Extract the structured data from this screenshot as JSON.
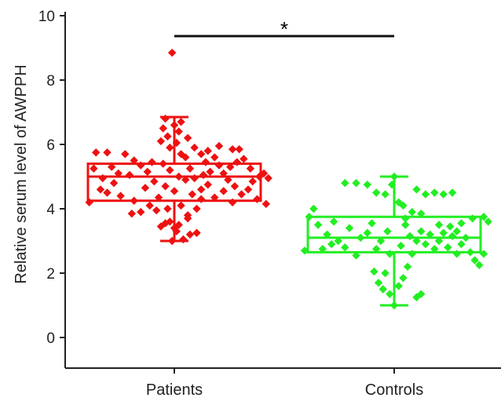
{
  "chart_data": {
    "type": "scatter",
    "subtype": "box-with-points",
    "title": "",
    "xlabel": "",
    "ylabel": "Relative serum level of AWPPH",
    "ylim": [
      -1,
      10
    ],
    "yticks": [
      "0",
      "2",
      "4",
      "6",
      "8",
      "10"
    ],
    "grid": false,
    "categories": [
      "Patients",
      "Controls"
    ],
    "series": [
      {
        "color": "#ee1111",
        "box": {
          "min": 3.0,
          "q1": 4.25,
          "median": 5.0,
          "q3": 5.4,
          "max": 6.85
        },
        "points": [
          [
            -0.35,
            5.75
          ],
          [
            -0.3,
            5.75
          ],
          [
            -0.22,
            5.7
          ],
          [
            -0.18,
            5.5
          ],
          [
            -0.28,
            5.3
          ],
          [
            -0.36,
            5.25
          ],
          [
            -0.25,
            5.1
          ],
          [
            -0.2,
            5.05
          ],
          [
            -0.15,
            5.35
          ],
          [
            -0.1,
            5.45
          ],
          [
            -0.32,
            4.95
          ],
          [
            -0.27,
            4.8
          ],
          [
            -0.33,
            4.6
          ],
          [
            -0.38,
            4.2
          ],
          [
            -0.3,
            4.5
          ],
          [
            -0.24,
            4.4
          ],
          [
            -0.18,
            4.25
          ],
          [
            -0.13,
            4.65
          ],
          [
            -0.09,
            4.85
          ],
          [
            -0.12,
            5.15
          ],
          [
            -0.05,
            5.4
          ],
          [
            -0.02,
            5.2
          ],
          [
            0.02,
            5.0
          ],
          [
            0.05,
            4.9
          ],
          [
            -0.04,
            4.7
          ],
          [
            0.0,
            4.55
          ],
          [
            -0.07,
            4.35
          ],
          [
            -0.11,
            4.1
          ],
          [
            -0.15,
            3.9
          ],
          [
            -0.19,
            3.85
          ],
          [
            -0.08,
            3.95
          ],
          [
            -0.03,
            4.0
          ],
          [
            0.03,
            4.1
          ],
          [
            0.06,
            3.8
          ],
          [
            -0.02,
            3.6
          ],
          [
            0.02,
            3.5
          ],
          [
            -0.06,
            3.45
          ],
          [
            0.01,
            3.3
          ],
          [
            -0.01,
            3.0
          ],
          [
            0.04,
            3.05
          ],
          [
            0.07,
            3.2
          ],
          [
            0.1,
            3.25
          ],
          [
            0.0,
            3.4
          ],
          [
            -0.04,
            3.55
          ],
          [
            0.06,
            3.7
          ],
          [
            0.1,
            4.0
          ],
          [
            0.12,
            4.3
          ],
          [
            0.08,
            4.45
          ],
          [
            0.12,
            4.6
          ],
          [
            0.15,
            4.75
          ],
          [
            0.09,
            4.95
          ],
          [
            0.13,
            5.05
          ],
          [
            0.07,
            5.25
          ],
          [
            0.16,
            5.15
          ],
          [
            0.14,
            5.45
          ],
          [
            0.18,
            5.6
          ],
          [
            0.2,
            5.35
          ],
          [
            0.22,
            5.1
          ],
          [
            0.25,
            5.3
          ],
          [
            0.28,
            5.45
          ],
          [
            0.24,
            4.9
          ],
          [
            0.27,
            4.7
          ],
          [
            0.22,
            4.55
          ],
          [
            0.18,
            4.35
          ],
          [
            0.26,
            4.2
          ],
          [
            0.3,
            4.45
          ],
          [
            0.33,
            4.6
          ],
          [
            0.35,
            4.85
          ],
          [
            0.38,
            5.0
          ],
          [
            0.4,
            5.1
          ],
          [
            0.34,
            5.25
          ],
          [
            0.31,
            5.55
          ],
          [
            0.29,
            5.85
          ],
          [
            0.26,
            5.85
          ],
          [
            0.2,
            5.95
          ],
          [
            0.15,
            5.8
          ],
          [
            0.05,
            5.6
          ],
          [
            0.03,
            5.7
          ],
          [
            -0.02,
            5.9
          ],
          [
            0.01,
            6.05
          ],
          [
            -0.03,
            6.25
          ],
          [
            0.02,
            6.4
          ],
          [
            -0.05,
            6.5
          ],
          [
            0.0,
            6.6
          ],
          [
            0.03,
            6.7
          ],
          [
            -0.04,
            6.8
          ],
          [
            -0.06,
            6.1
          ],
          [
            0.06,
            6.2
          ],
          [
            0.09,
            5.9
          ],
          [
            0.12,
            5.7
          ],
          [
            0.37,
            4.3
          ],
          [
            0.42,
            4.95
          ],
          [
            0.41,
            4.15
          ],
          [
            -0.01,
            8.85
          ]
        ]
      },
      {
        "color": "#22ee22",
        "box": {
          "min": 1.0,
          "q1": 2.65,
          "median": 3.1,
          "q3": 3.75,
          "max": 5.0
        },
        "points": [
          [
            -0.4,
            2.7
          ],
          [
            -0.38,
            3.75
          ],
          [
            -0.36,
            4.0
          ],
          [
            -0.34,
            3.5
          ],
          [
            -0.3,
            3.2
          ],
          [
            -0.27,
            3.6
          ],
          [
            -0.25,
            3.0
          ],
          [
            -0.22,
            2.8
          ],
          [
            -0.2,
            3.4
          ],
          [
            -0.17,
            2.55
          ],
          [
            -0.15,
            3.1
          ],
          [
            -0.12,
            3.25
          ],
          [
            -0.1,
            3.55
          ],
          [
            -0.08,
            2.75
          ],
          [
            -0.06,
            3.0
          ],
          [
            -0.03,
            3.3
          ],
          [
            -0.02,
            2.6
          ],
          [
            -0.22,
            4.8
          ],
          [
            -0.17,
            4.8
          ],
          [
            -0.12,
            4.75
          ],
          [
            -0.08,
            4.5
          ],
          [
            -0.04,
            4.45
          ],
          [
            -0.01,
            4.75
          ],
          [
            0.0,
            5.0
          ],
          [
            0.02,
            4.2
          ],
          [
            0.04,
            4.1
          ],
          [
            0.05,
            3.5
          ],
          [
            0.07,
            3.15
          ],
          [
            0.03,
            2.85
          ],
          [
            0.08,
            2.6
          ],
          [
            -0.09,
            2.05
          ],
          [
            -0.07,
            1.7
          ],
          [
            -0.05,
            1.5
          ],
          [
            -0.02,
            1.35
          ],
          [
            0.0,
            1.0
          ],
          [
            0.02,
            1.6
          ],
          [
            0.04,
            1.85
          ],
          [
            0.06,
            2.2
          ],
          [
            0.1,
            1.25
          ],
          [
            0.12,
            1.35
          ],
          [
            -0.04,
            2.0
          ],
          [
            0.1,
            3.0
          ],
          [
            0.12,
            3.3
          ],
          [
            0.14,
            2.9
          ],
          [
            0.16,
            3.2
          ],
          [
            0.18,
            2.75
          ],
          [
            0.2,
            3.0
          ],
          [
            0.22,
            3.25
          ],
          [
            0.24,
            2.8
          ],
          [
            0.26,
            3.15
          ],
          [
            0.28,
            3.3
          ],
          [
            0.3,
            2.9
          ],
          [
            0.32,
            3.1
          ],
          [
            0.34,
            2.65
          ],
          [
            0.36,
            2.4
          ],
          [
            0.38,
            2.25
          ],
          [
            0.4,
            2.6
          ],
          [
            0.42,
            3.6
          ],
          [
            0.4,
            3.75
          ],
          [
            0.35,
            3.7
          ],
          [
            0.3,
            3.55
          ],
          [
            0.25,
            3.45
          ],
          [
            0.14,
            4.45
          ],
          [
            0.18,
            4.5
          ],
          [
            0.22,
            4.45
          ],
          [
            0.26,
            4.5
          ],
          [
            0.1,
            4.6
          ],
          [
            0.08,
            3.9
          ],
          [
            0.12,
            3.85
          ],
          [
            -0.28,
            2.9
          ],
          [
            -0.32,
            2.75
          ],
          [
            0.2,
            3.5
          ],
          [
            0.28,
            2.6
          ],
          [
            0.05,
            3.7
          ]
        ]
      }
    ],
    "annotations": [
      {
        "type": "significance",
        "from": "Patients",
        "to": "Controls",
        "label": "*"
      }
    ]
  }
}
